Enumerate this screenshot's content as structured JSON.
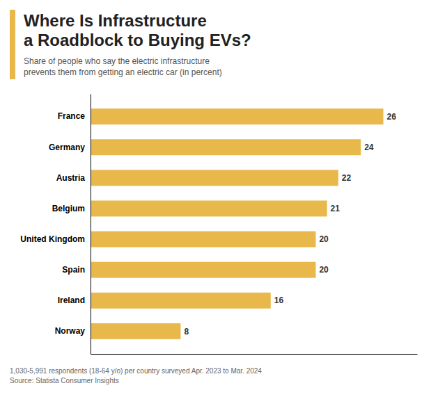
{
  "chart_data": {
    "type": "bar",
    "orientation": "horizontal",
    "title": "Where Is Infrastructure\na Roadblock to Buying EVs?",
    "subtitle": "Share of people who say the electric infrastructure\nprevents them from getting an electric car (in percent)",
    "annotations": [
      "1,030-5,991 respondents (18-64 y/o) per country surveyed Apr. 2023 to Mar. 2024\nSource: Statista Consumer Insights"
    ],
    "categories": [
      "France",
      "Germany",
      "Austria",
      "Belgium",
      "United Kingdom",
      "Spain",
      "Ireland",
      "Norway"
    ],
    "values": [
      26,
      24,
      22,
      21,
      20,
      20,
      16,
      8
    ],
    "color": "#E8B84B",
    "xlim": [
      0,
      29
    ],
    "data_labels": true,
    "tick_labels": "y",
    "grid": false
  }
}
